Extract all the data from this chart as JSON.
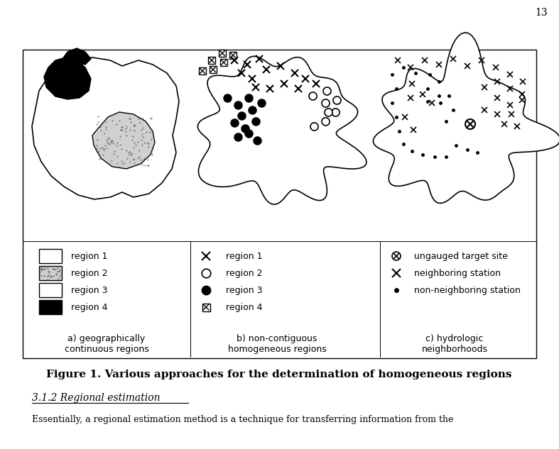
{
  "title": "Figure 1. Various approaches for the determination of homogeneous regions",
  "subtitle_a": "a) geographically\ncontinuous regions",
  "subtitle_b": "b) non-contiguous\nhomogeneous regions",
  "subtitle_c": "c) hydrologic\nneighborhoods",
  "page_number": "13",
  "section_header": "3.1.2 Regional estimation",
  "body_text": "Essentially, a regional estimation method is a technique for transferring information from the",
  "bg_color": "white"
}
